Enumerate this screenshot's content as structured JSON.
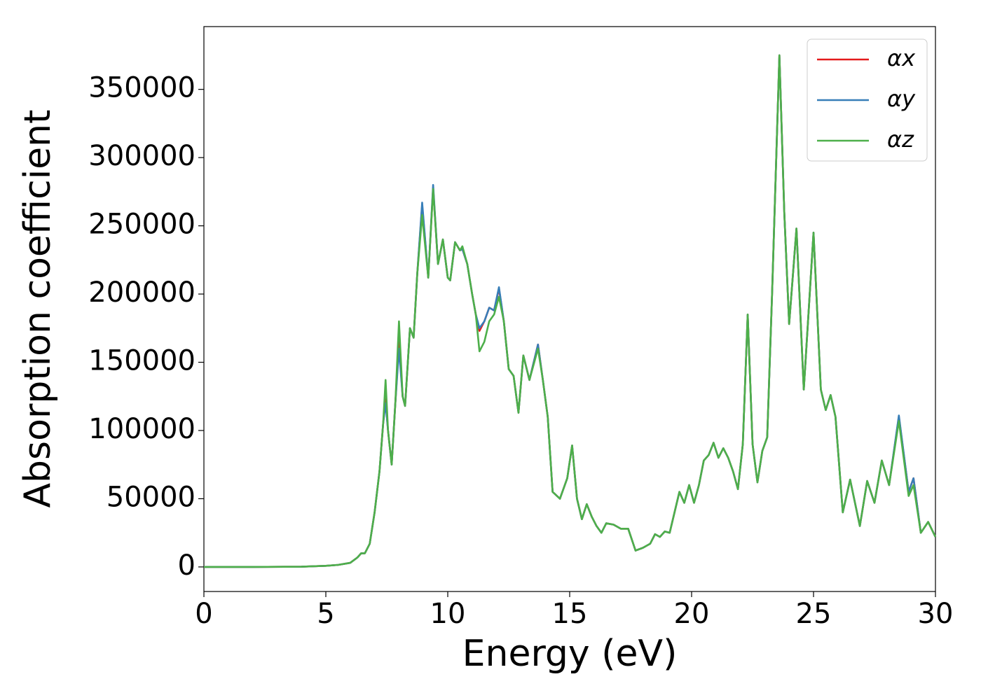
{
  "chart_data": {
    "type": "line",
    "xlabel": "Energy (eV)",
    "ylabel": "Absorption coefficient",
    "x": [
      0,
      2,
      4,
      5,
      5.5,
      6,
      6.3,
      6.45,
      6.6,
      6.8,
      7.0,
      7.2,
      7.35,
      7.45,
      7.55,
      7.7,
      7.85,
      8.0,
      8.15,
      8.25,
      8.45,
      8.6,
      8.75,
      8.95,
      9.2,
      9.4,
      9.6,
      9.8,
      10.0,
      10.1,
      10.3,
      10.5,
      10.6,
      10.8,
      11.0,
      11.15,
      11.3,
      11.5,
      11.7,
      11.9,
      12.1,
      12.3,
      12.5,
      12.7,
      12.9,
      13.1,
      13.35,
      13.7,
      13.9,
      14.1,
      14.3,
      14.6,
      14.9,
      15.1,
      15.3,
      15.5,
      15.7,
      15.9,
      16.1,
      16.3,
      16.5,
      16.8,
      17.1,
      17.4,
      17.7,
      18.0,
      18.3,
      18.5,
      18.7,
      18.9,
      19.1,
      19.3,
      19.5,
      19.7,
      19.9,
      20.1,
      20.3,
      20.5,
      20.7,
      20.9,
      21.1,
      21.3,
      21.5,
      21.7,
      21.9,
      22.1,
      22.3,
      22.5,
      22.7,
      22.9,
      23.1,
      23.3,
      23.6,
      23.8,
      24.0,
      24.3,
      24.6,
      25.0,
      25.3,
      25.5,
      25.7,
      25.9,
      26.2,
      26.5,
      26.9,
      27.2,
      27.5,
      27.8,
      28.1,
      28.5,
      28.9,
      29.1,
      29.4,
      29.7,
      30
    ],
    "series": [
      {
        "name": "αx",
        "color": "#e41a1c",
        "values": [
          0,
          0,
          200,
          800,
          1500,
          3000,
          7000,
          10000,
          10000,
          17000,
          40000,
          70000,
          105000,
          123000,
          100000,
          75000,
          120000,
          165000,
          125000,
          118000,
          175000,
          168000,
          215000,
          265000,
          212000,
          278000,
          222000,
          240000,
          212000,
          210000,
          238000,
          232000,
          233000,
          222000,
          200000,
          185000,
          173000,
          180000,
          190000,
          188000,
          204000,
          180000,
          145000,
          140000,
          113000,
          155000,
          137000,
          163000,
          137000,
          110000,
          55000,
          50000,
          65000,
          89000,
          50000,
          35000,
          46000,
          37000,
          30000,
          25000,
          32000,
          31000,
          28000,
          28000,
          12000,
          14000,
          17000,
          24000,
          22000,
          26000,
          25000,
          40000,
          55000,
          47000,
          60000,
          47000,
          60000,
          78000,
          82000,
          91000,
          80000,
          87000,
          80000,
          70000,
          57000,
          90000,
          185000,
          90000,
          62000,
          85000,
          95000,
          200000,
          375000,
          260000,
          178000,
          248000,
          130000,
          245000,
          130000,
          115000,
          126000,
          110000,
          40000,
          64000,
          30000,
          63000,
          47000,
          78000,
          60000,
          110000,
          55000,
          65000,
          25000,
          33000,
          22000
        ]
      },
      {
        "name": "αy",
        "color": "#377eb8",
        "values": [
          0,
          0,
          200,
          800,
          1500,
          3000,
          7000,
          10000,
          10000,
          17000,
          40000,
          70000,
          105000,
          120000,
          100000,
          75000,
          120000,
          160000,
          125000,
          118000,
          175000,
          168000,
          215000,
          267000,
          212000,
          280000,
          222000,
          240000,
          212000,
          210000,
          238000,
          232000,
          233000,
          222000,
          200000,
          185000,
          175000,
          180000,
          190000,
          188000,
          205000,
          180000,
          145000,
          140000,
          113000,
          155000,
          137000,
          163000,
          137000,
          110000,
          55000,
          50000,
          65000,
          89000,
          50000,
          35000,
          46000,
          37000,
          30000,
          25000,
          32000,
          31000,
          28000,
          28000,
          12000,
          14000,
          17000,
          24000,
          22000,
          26000,
          25000,
          40000,
          55000,
          47000,
          60000,
          47000,
          60000,
          78000,
          82000,
          91000,
          80000,
          87000,
          80000,
          70000,
          57000,
          90000,
          185000,
          90000,
          62000,
          85000,
          95000,
          200000,
          375000,
          260000,
          178000,
          248000,
          130000,
          245000,
          130000,
          115000,
          126000,
          110000,
          40000,
          64000,
          30000,
          63000,
          47000,
          78000,
          60000,
          111000,
          55000,
          65000,
          25000,
          33000,
          22000
        ]
      },
      {
        "name": "αz",
        "color": "#4daf4a",
        "values": [
          0,
          0,
          200,
          800,
          1500,
          3000,
          7000,
          10000,
          10000,
          17000,
          40000,
          70000,
          105000,
          137000,
          100000,
          75000,
          120000,
          180000,
          125000,
          118000,
          175000,
          168000,
          215000,
          258000,
          212000,
          277000,
          222000,
          240000,
          212000,
          210000,
          238000,
          232000,
          235000,
          222000,
          200000,
          185000,
          158000,
          165000,
          180000,
          185000,
          198000,
          180000,
          145000,
          140000,
          113000,
          155000,
          137000,
          160000,
          137000,
          110000,
          55000,
          50000,
          65000,
          89000,
          50000,
          35000,
          46000,
          37000,
          30000,
          25000,
          32000,
          31000,
          28000,
          28000,
          12000,
          14000,
          17000,
          24000,
          22000,
          26000,
          25000,
          40000,
          55000,
          47000,
          60000,
          47000,
          60000,
          78000,
          82000,
          91000,
          80000,
          87000,
          80000,
          70000,
          57000,
          90000,
          185000,
          90000,
          62000,
          85000,
          95000,
          200000,
          375000,
          260000,
          178000,
          248000,
          130000,
          245000,
          130000,
          115000,
          126000,
          110000,
          40000,
          64000,
          30000,
          63000,
          47000,
          78000,
          60000,
          107000,
          52000,
          60000,
          25000,
          33000,
          22000
        ]
      }
    ],
    "xlim": [
      0,
      30
    ],
    "xticks": [
      0,
      5,
      10,
      15,
      20,
      25,
      30
    ],
    "ylim": [
      -18000,
      396000
    ],
    "yticks": [
      0,
      50000,
      100000,
      150000,
      200000,
      250000,
      300000,
      350000
    ],
    "grid": false,
    "legend": "upper right"
  }
}
